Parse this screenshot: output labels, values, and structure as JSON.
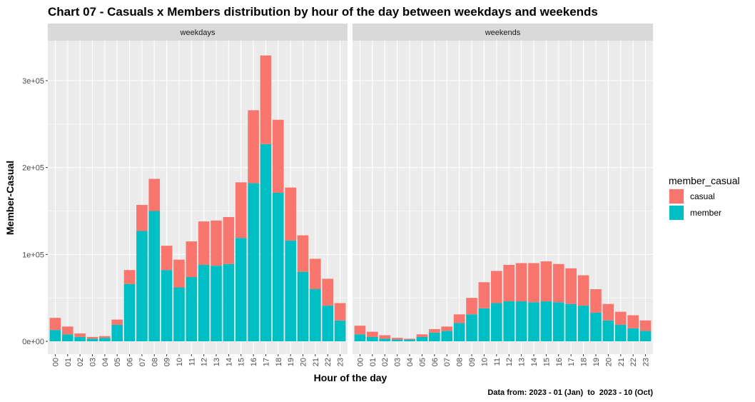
{
  "chart_data": {
    "type": "bar",
    "stacked": true,
    "title": "Chart 07 - Casuals x Members distribution by hour of the day between weekdays and weekends",
    "xlabel": "Hour of the day",
    "ylabel": "Member-Casual",
    "caption": "Data from: 2023 - 01 (Jan)  to  2023 - 10 (Oct)",
    "ylim": [
      0,
      340000
    ],
    "yticks": [
      {
        "value": 0,
        "label": "0e+00"
      },
      {
        "value": 100000,
        "label": "1e+05"
      },
      {
        "value": 200000,
        "label": "2e+05"
      },
      {
        "value": 300000,
        "label": "3e+05"
      }
    ],
    "grid": true,
    "legend": {
      "title": "member_casual",
      "placement": "right",
      "entries": [
        {
          "name": "casual",
          "color": "#F8766D"
        },
        {
          "name": "member",
          "color": "#00BFC4"
        }
      ]
    },
    "categories": [
      "00",
      "01",
      "02",
      "03",
      "04",
      "05",
      "06",
      "07",
      "08",
      "09",
      "10",
      "11",
      "12",
      "13",
      "14",
      "15",
      "16",
      "17",
      "18",
      "19",
      "20",
      "21",
      "22",
      "23"
    ],
    "panels": [
      {
        "name": "weekdays",
        "series": [
          {
            "name": "member",
            "values": [
              13000,
              8000,
              5000,
              3000,
              4000,
              19000,
              66000,
              127000,
              150000,
              82000,
              62000,
              74000,
              88000,
              87000,
              89000,
              119000,
              182000,
              227000,
              171000,
              116000,
              80000,
              60000,
              41000,
              24000
            ]
          },
          {
            "name": "casual",
            "values": [
              14000,
              9000,
              4000,
              2000,
              2000,
              6000,
              16000,
              30000,
              37000,
              28000,
              32000,
              41000,
              50000,
              52000,
              54000,
              64000,
              84000,
              102000,
              84000,
              61000,
              42000,
              35000,
              31000,
              20000
            ]
          }
        ]
      },
      {
        "name": "weekends",
        "series": [
          {
            "name": "member",
            "values": [
              8000,
              5000,
              3000,
              2000,
              2000,
              5000,
              10000,
              12000,
              21000,
              31000,
              38000,
              44000,
              46000,
              46000,
              45000,
              46000,
              45000,
              43000,
              41000,
              33000,
              24000,
              19000,
              15000,
              12000
            ]
          },
          {
            "name": "casual",
            "values": [
              10000,
              6000,
              4000,
              2000,
              1000,
              3000,
              4000,
              5000,
              10000,
              19000,
              30000,
              37000,
              42000,
              44000,
              45000,
              46000,
              44000,
              41000,
              35000,
              27000,
              19000,
              15000,
              15000,
              12000
            ]
          }
        ]
      }
    ]
  }
}
